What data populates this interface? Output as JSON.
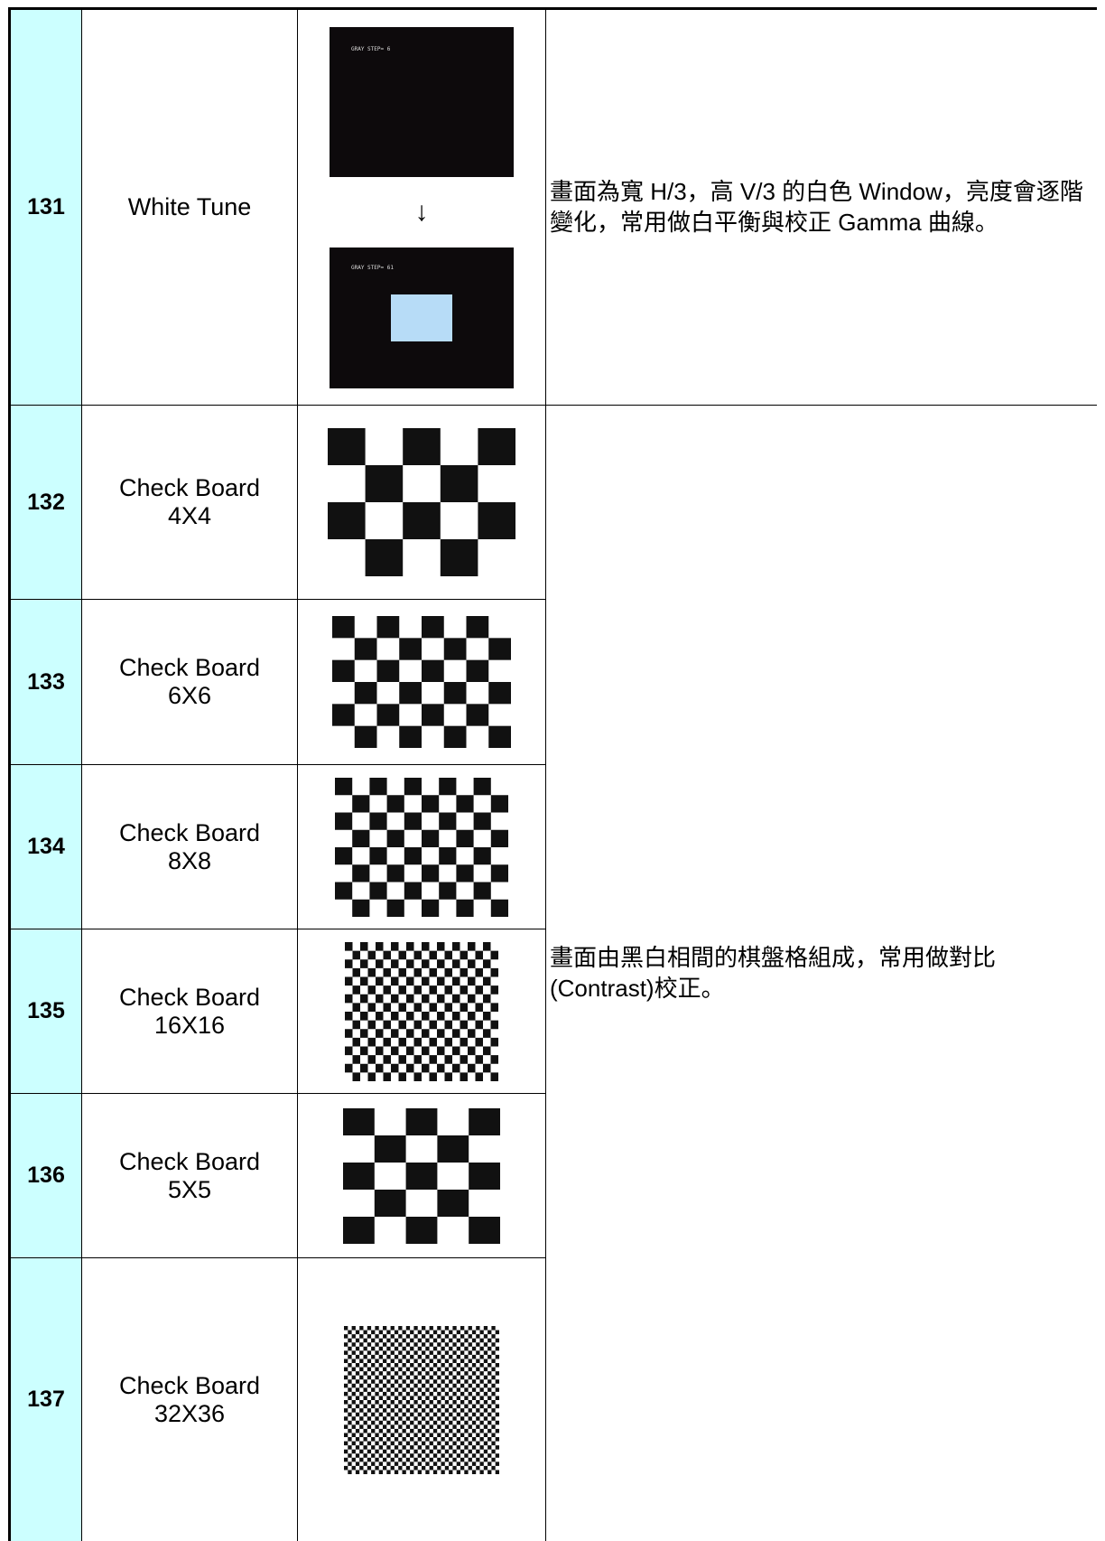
{
  "table": {
    "rows": [
      {
        "id": "131",
        "name": "White Tune",
        "screens": [
          "GRAY STEP= 6",
          "GRAY STEP= 61"
        ],
        "description": "畫面為寬 H/3，高 V/3 的白色 Window，亮度會逐階變化，常用做白平衡與校正 Gamma 曲線。"
      },
      {
        "id": "132",
        "name": "Check Board",
        "size": "4X4"
      },
      {
        "id": "133",
        "name": "Check Board",
        "size": "6X6"
      },
      {
        "id": "134",
        "name": "Check Board",
        "size": "8X8"
      },
      {
        "id": "135",
        "name": "Check Board",
        "size": "16X16"
      },
      {
        "id": "136",
        "name": "Check Board",
        "size": "5X5"
      },
      {
        "id": "137",
        "name": "Check Board",
        "size": "32X36"
      }
    ],
    "shared_description": "畫面由黑白相間的棋盤格組成，常用做對比(Contrast)校正。"
  }
}
